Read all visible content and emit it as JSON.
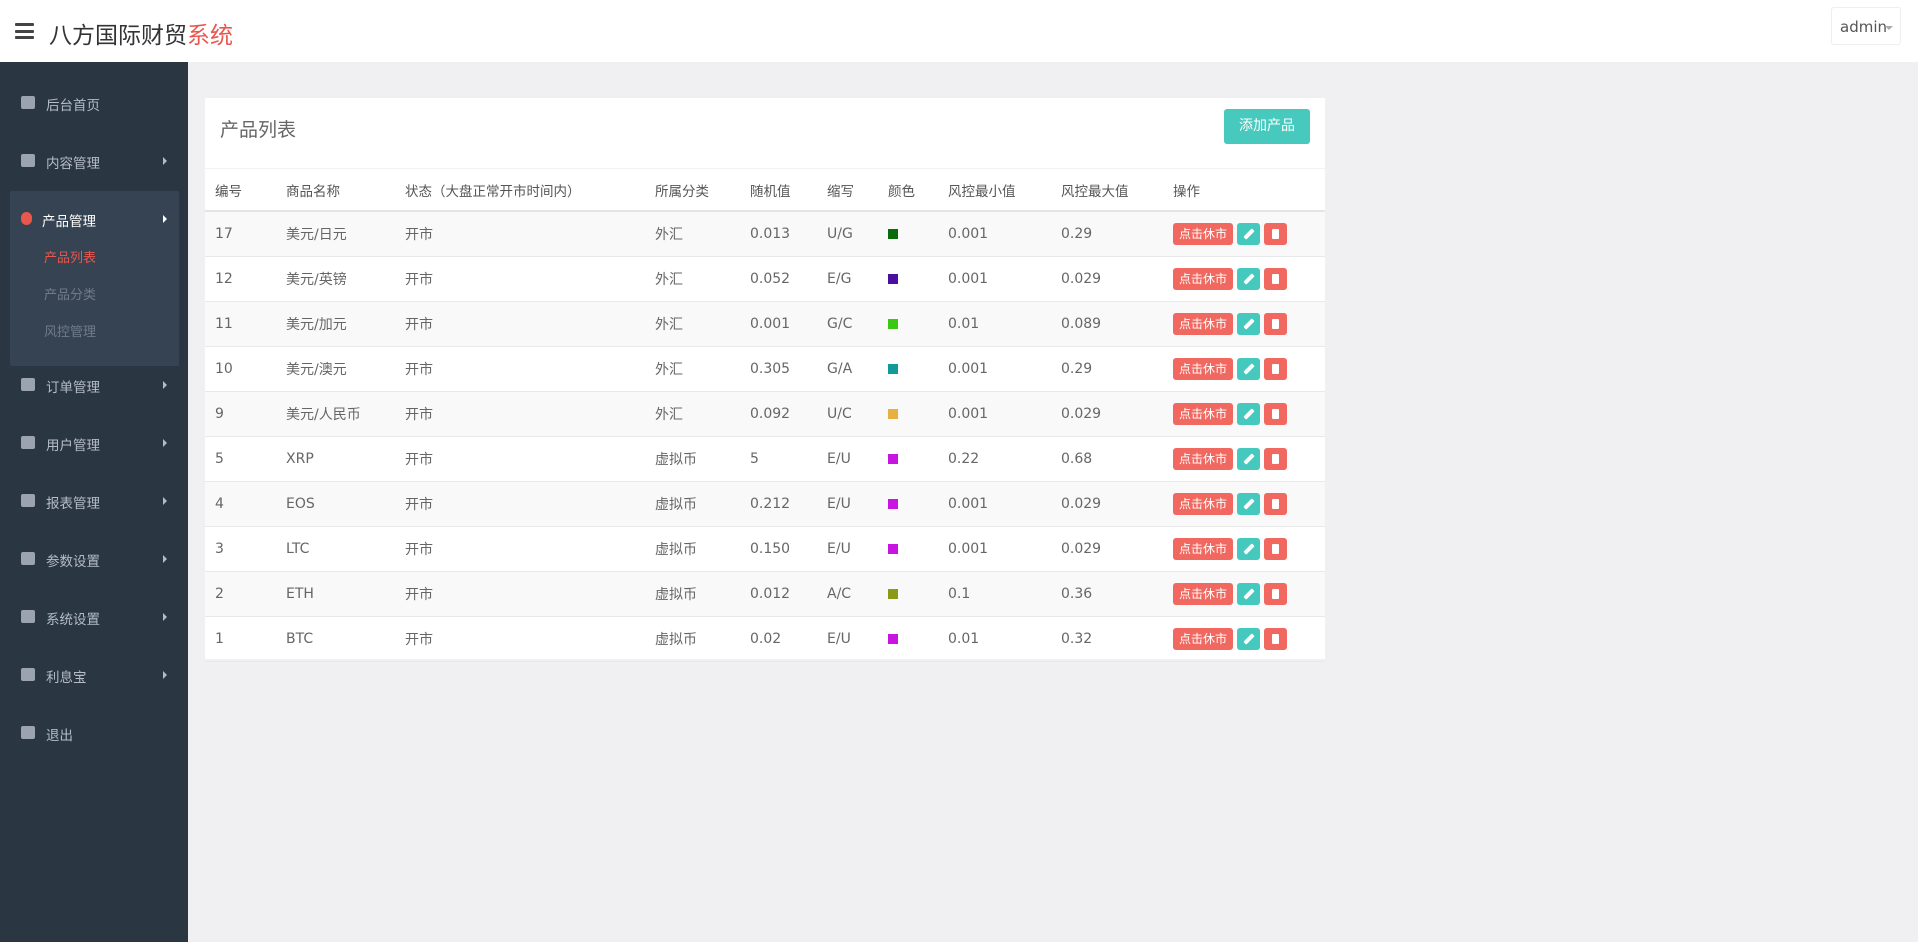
{
  "header": {
    "logo_main": "八方国际财贸",
    "logo_accent": "系统",
    "user": "admin"
  },
  "sidebar": {
    "items": [
      {
        "label": "后台首页",
        "has_submenu": false
      },
      {
        "label": "内容管理",
        "has_submenu": true
      },
      {
        "label": "产品管理",
        "has_submenu": true,
        "active": true,
        "children": [
          "产品列表",
          "产品分类",
          "风控管理"
        ]
      },
      {
        "label": "订单管理",
        "has_submenu": true
      },
      {
        "label": "用户管理",
        "has_submenu": true
      },
      {
        "label": "报表管理",
        "has_submenu": true
      },
      {
        "label": "参数设置",
        "has_submenu": true
      },
      {
        "label": "系统设置",
        "has_submenu": true
      },
      {
        "label": "利息宝",
        "has_submenu": true
      },
      {
        "label": "退出",
        "has_submenu": false
      }
    ]
  },
  "panel": {
    "title": "产品列表",
    "add_button": "添加产品",
    "columns": [
      "编号",
      "商品名称",
      "状态（大盘正常开市时间内）",
      "所属分类",
      "随机值",
      "缩写",
      "颜色",
      "风控最小值",
      "风控最大值",
      "操作"
    ],
    "rows": [
      {
        "id": "17",
        "name": "美元/日元",
        "status": "开市",
        "category": "外汇",
        "random": "0.013",
        "abbr": "U/G",
        "color": "#0b6b0b",
        "min": "0.001",
        "max": "0.29",
        "action": "点击休市"
      },
      {
        "id": "12",
        "name": "美元/英镑",
        "status": "开市",
        "category": "外汇",
        "random": "0.052",
        "abbr": "E/G",
        "color": "#4b0f9e",
        "min": "0.001",
        "max": "0.029",
        "action": "点击休市"
      },
      {
        "id": "11",
        "name": "美元/加元",
        "status": "开市",
        "category": "外汇",
        "random": "0.001",
        "abbr": "G/C",
        "color": "#3ac814",
        "min": "0.01",
        "max": "0.089",
        "action": "点击休市"
      },
      {
        "id": "10",
        "name": "美元/澳元",
        "status": "开市",
        "category": "外汇",
        "random": "0.305",
        "abbr": "G/A",
        "color": "#129a9a",
        "min": "0.001",
        "max": "0.29",
        "action": "点击休市"
      },
      {
        "id": "9",
        "name": "美元/人民币",
        "status": "开市",
        "category": "外汇",
        "random": "0.092",
        "abbr": "U/C",
        "color": "#e8b040",
        "min": "0.001",
        "max": "0.029",
        "action": "点击休市"
      },
      {
        "id": "5",
        "name": "XRP",
        "status": "开市",
        "category": "虚拟币",
        "random": "5",
        "abbr": "E/U",
        "color": "#c814e0",
        "min": "0.22",
        "max": "0.68",
        "action": "点击休市"
      },
      {
        "id": "4",
        "name": "EOS",
        "status": "开市",
        "category": "虚拟币",
        "random": "0.212",
        "abbr": "E/U",
        "color": "#c814e0",
        "min": "0.001",
        "max": "0.029",
        "action": "点击休市"
      },
      {
        "id": "3",
        "name": "LTC",
        "status": "开市",
        "category": "虚拟币",
        "random": "0.150",
        "abbr": "E/U",
        "color": "#c814e0",
        "min": "0.001",
        "max": "0.029",
        "action": "点击休市"
      },
      {
        "id": "2",
        "name": "ETH",
        "status": "开市",
        "category": "虚拟币",
        "random": "0.012",
        "abbr": "A/C",
        "color": "#8a9a14",
        "min": "0.1",
        "max": "0.36",
        "action": "点击休市"
      },
      {
        "id": "1",
        "name": "BTC",
        "status": "开市",
        "category": "虚拟币",
        "random": "0.02",
        "abbr": "E/U",
        "color": "#c814e0",
        "min": "0.01",
        "max": "0.32",
        "action": "点击休市"
      }
    ]
  }
}
